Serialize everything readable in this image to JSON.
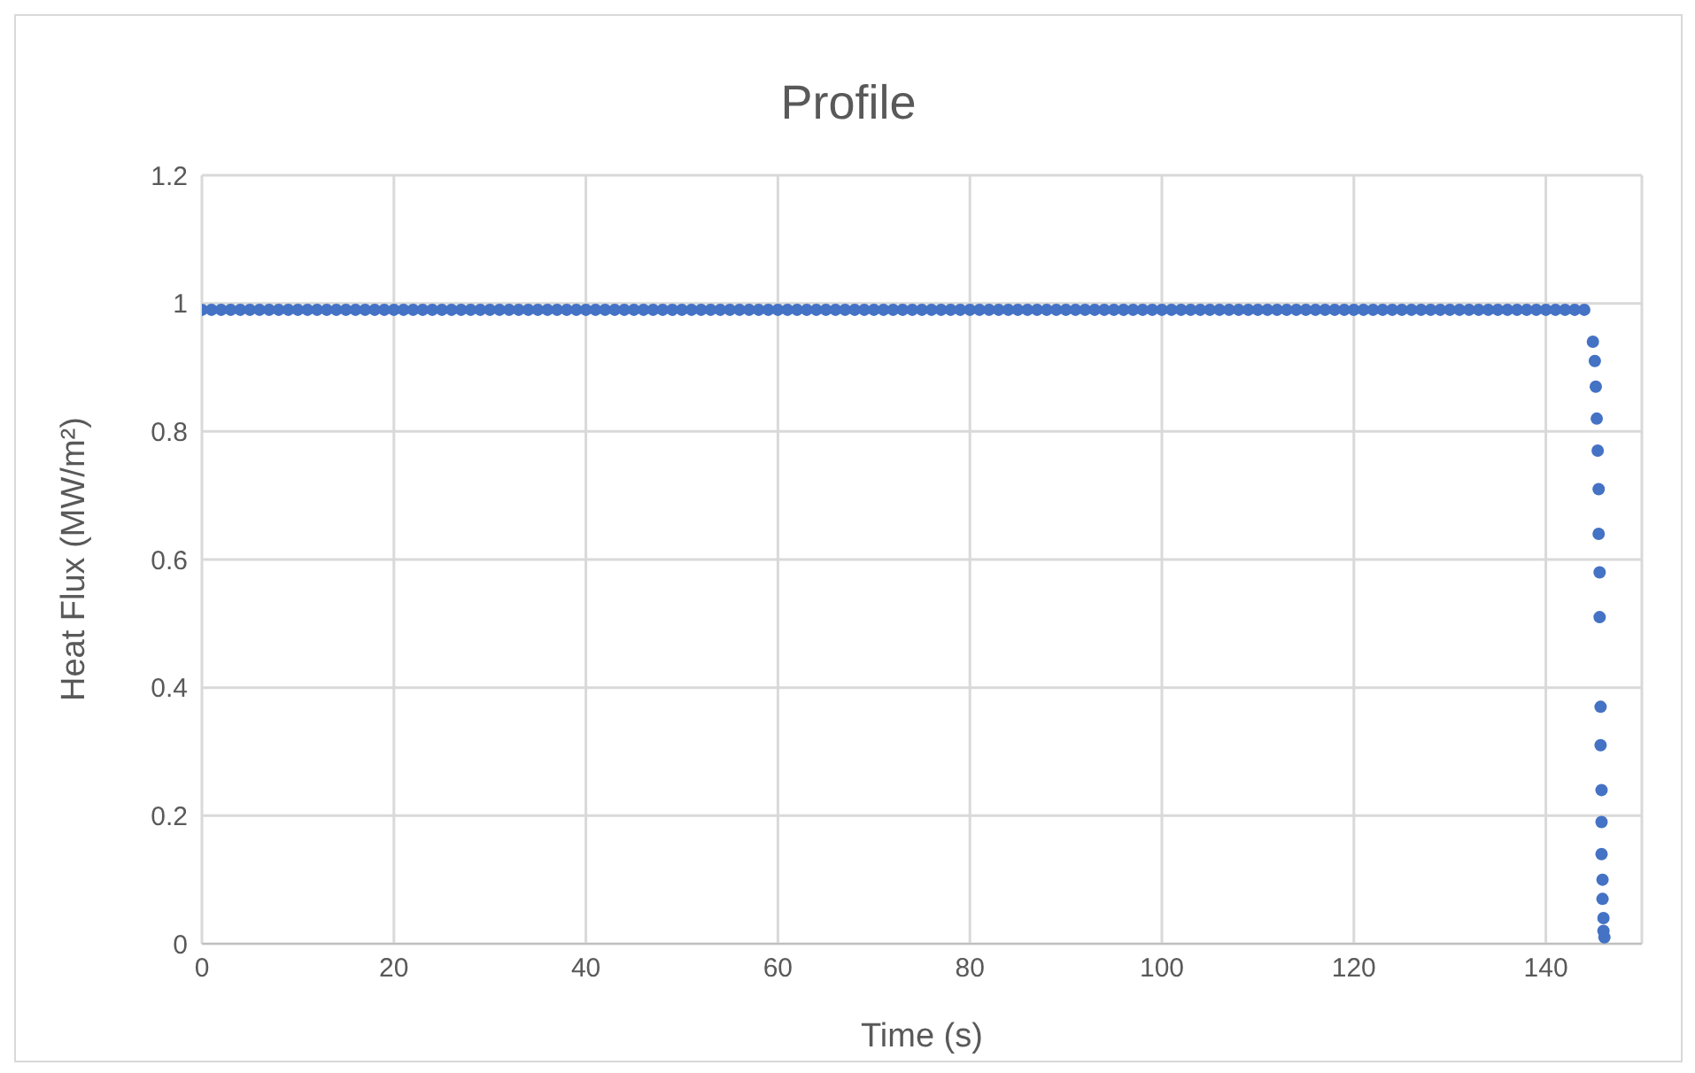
{
  "chart_data": {
    "type": "scatter",
    "title": "Profile",
    "xlabel": "Time (s)",
    "ylabel": "Heat Flux (MW/m²)",
    "x": [
      0,
      1,
      2,
      3,
      4,
      5,
      6,
      7,
      8,
      9,
      10,
      11,
      12,
      13,
      14,
      15,
      16,
      17,
      18,
      19,
      20,
      21,
      22,
      23,
      24,
      25,
      26,
      27,
      28,
      29,
      30,
      31,
      32,
      33,
      34,
      35,
      36,
      37,
      38,
      39,
      40,
      41,
      42,
      43,
      44,
      45,
      46,
      47,
      48,
      49,
      50,
      51,
      52,
      53,
      54,
      55,
      56,
      57,
      58,
      59,
      60,
      61,
      62,
      63,
      64,
      65,
      66,
      67,
      68,
      69,
      70,
      71,
      72,
      73,
      74,
      75,
      76,
      77,
      78,
      79,
      80,
      81,
      82,
      83,
      84,
      85,
      86,
      87,
      88,
      89,
      90,
      91,
      92,
      93,
      94,
      95,
      96,
      97,
      98,
      99,
      100,
      101,
      102,
      103,
      104,
      105,
      106,
      107,
      108,
      109,
      110,
      111,
      112,
      113,
      114,
      115,
      116,
      117,
      118,
      119,
      120,
      121,
      122,
      123,
      124,
      125,
      126,
      127,
      128,
      129,
      130,
      131,
      132,
      133,
      134,
      135,
      136,
      137,
      138,
      139,
      140,
      141,
      142,
      143,
      144,
      144.9,
      145.1,
      145.2,
      145.3,
      145.4,
      145.5,
      145.5,
      145.6,
      145.6,
      145.7,
      145.7,
      145.8,
      145.8,
      145.8,
      145.9,
      145.9,
      146,
      146,
      146.1
    ],
    "series": [
      {
        "color": "#4472c4",
        "values": [
          0.99,
          0.99,
          0.99,
          0.99,
          0.99,
          0.99,
          0.99,
          0.99,
          0.99,
          0.99,
          0.99,
          0.99,
          0.99,
          0.99,
          0.99,
          0.99,
          0.99,
          0.99,
          0.99,
          0.99,
          0.99,
          0.99,
          0.99,
          0.99,
          0.99,
          0.99,
          0.99,
          0.99,
          0.99,
          0.99,
          0.99,
          0.99,
          0.99,
          0.99,
          0.99,
          0.99,
          0.99,
          0.99,
          0.99,
          0.99,
          0.99,
          0.99,
          0.99,
          0.99,
          0.99,
          0.99,
          0.99,
          0.99,
          0.99,
          0.99,
          0.99,
          0.99,
          0.99,
          0.99,
          0.99,
          0.99,
          0.99,
          0.99,
          0.99,
          0.99,
          0.99,
          0.99,
          0.99,
          0.99,
          0.99,
          0.99,
          0.99,
          0.99,
          0.99,
          0.99,
          0.99,
          0.99,
          0.99,
          0.99,
          0.99,
          0.99,
          0.99,
          0.99,
          0.99,
          0.99,
          0.99,
          0.99,
          0.99,
          0.99,
          0.99,
          0.99,
          0.99,
          0.99,
          0.99,
          0.99,
          0.99,
          0.99,
          0.99,
          0.99,
          0.99,
          0.99,
          0.99,
          0.99,
          0.99,
          0.99,
          0.99,
          0.99,
          0.99,
          0.99,
          0.99,
          0.99,
          0.99,
          0.99,
          0.99,
          0.99,
          0.99,
          0.99,
          0.99,
          0.99,
          0.99,
          0.99,
          0.99,
          0.99,
          0.99,
          0.99,
          0.99,
          0.99,
          0.99,
          0.99,
          0.99,
          0.99,
          0.99,
          0.99,
          0.99,
          0.99,
          0.99,
          0.99,
          0.99,
          0.99,
          0.99,
          0.99,
          0.99,
          0.99,
          0.99,
          0.99,
          0.99,
          0.99,
          0.99,
          0.99,
          0.99,
          0.94,
          0.91,
          0.87,
          0.82,
          0.77,
          0.71,
          0.64,
          0.58,
          0.51,
          0.37,
          0.31,
          0.24,
          0.19,
          0.14,
          0.1,
          0.07,
          0.04,
          0.02,
          0.01
        ]
      }
    ],
    "xlim": [
      0,
      150
    ],
    "xticks": [
      0,
      20,
      40,
      60,
      80,
      100,
      120,
      140
    ],
    "ylim": [
      0,
      1.2
    ],
    "yticks": [
      0,
      0.2,
      0.4,
      0.6,
      0.8,
      1,
      1.2
    ],
    "grid": true,
    "marker": "circle",
    "legend": false
  }
}
